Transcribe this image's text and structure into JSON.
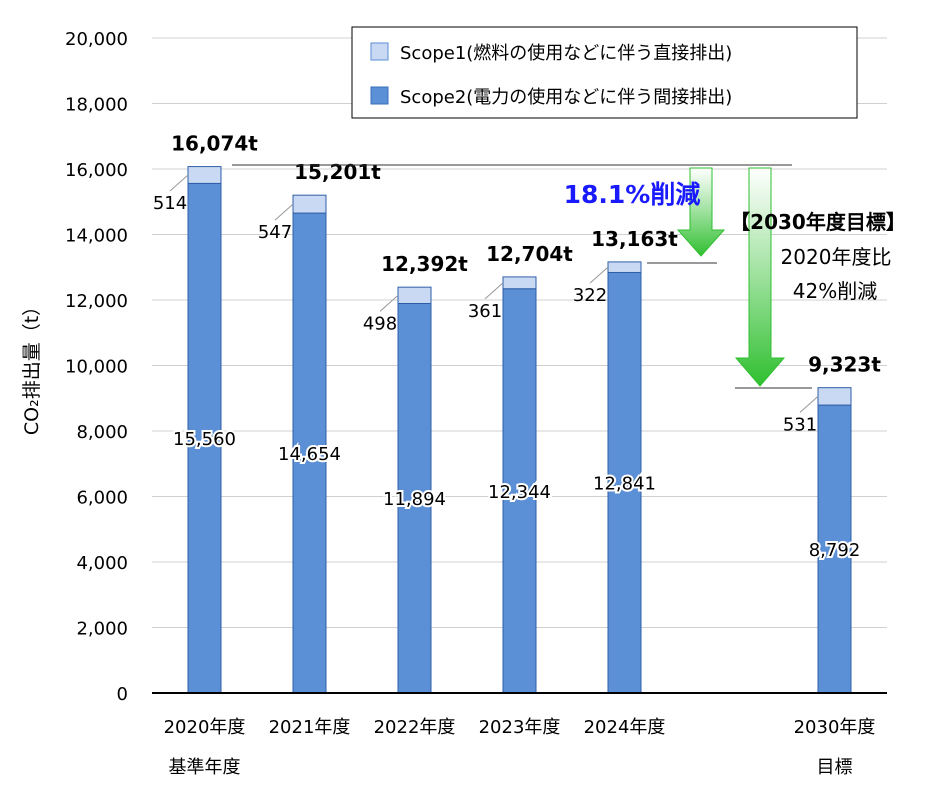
{
  "chart_data": {
    "type": "bar",
    "stacked": true,
    "ylabel": "CO₂排出量（t）",
    "ylim": [
      0,
      20000
    ],
    "ytick_step": 2000,
    "ytick_labels": [
      "0",
      "2,000",
      "4,000",
      "6,000",
      "8,000",
      "10,000",
      "12,000",
      "14,000",
      "16,000",
      "18,000",
      "20,000"
    ],
    "grid": true,
    "legend_position": "top-right",
    "categories": [
      {
        "line1": "2020年度",
        "line2": "基準年度"
      },
      {
        "line1": "2021年度",
        "line2": ""
      },
      {
        "line1": "2022年度",
        "line2": ""
      },
      {
        "line1": "2023年度",
        "line2": ""
      },
      {
        "line1": "2024年度",
        "line2": ""
      },
      {
        "line1": "",
        "line2": ""
      },
      {
        "line1": "2030年度",
        "line2": "目標"
      }
    ],
    "series": [
      {
        "name": "Scope2(電力の使用などに伴う間接排出)",
        "color": "#5b8fd6",
        "values": [
          15560,
          14654,
          11894,
          12344,
          12841,
          null,
          8792
        ],
        "labels": [
          "15,560",
          "14,654",
          "11,894",
          "12,344",
          "12,841",
          "",
          "8,792"
        ]
      },
      {
        "name": "Scope1(燃料の使用などに伴う直接排出)",
        "color": "#c9d9f3",
        "values": [
          514,
          547,
          498,
          361,
          322,
          null,
          531
        ],
        "labels": [
          "514",
          "547",
          "498",
          "361",
          "322",
          "",
          "531"
        ]
      }
    ],
    "totals": [
      16074,
      15201,
      12392,
      12704,
      13163,
      null,
      9323
    ],
    "total_labels": [
      "16,074t",
      "15,201t",
      "12,392t",
      "12,704t",
      "13,163t",
      "",
      "9,323t"
    ],
    "annotations": {
      "reduction_2024": "18.1%削減",
      "target_title": "【2030年度目標】",
      "target_line1": "2020年度比",
      "target_line2": "42%削減"
    },
    "colors": {
      "arrow_green": "#2fbf2f",
      "reduction_text": "#1a1aff",
      "axis": "#000000",
      "grid": "#d0d0d0"
    }
  }
}
